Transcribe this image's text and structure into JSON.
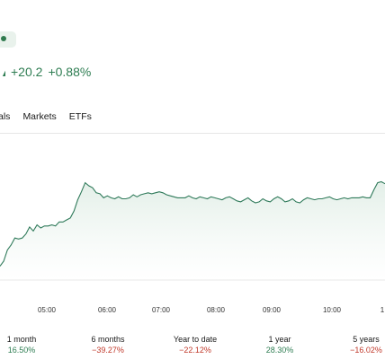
{
  "status": {
    "icon": "market-status-dot-icon"
  },
  "quote": {
    "change": "+20.2",
    "change_pct": "+0.88%",
    "color": "#2e7d52"
  },
  "tabs": [
    {
      "label": "als"
    },
    {
      "label": "Markets"
    },
    {
      "label": "ETFs"
    }
  ],
  "chart_data": {
    "type": "area",
    "title": "",
    "xlabel": "",
    "ylabel": "",
    "line_color": "#2f7a5a",
    "fill_color": "#e3efe8",
    "grid": false,
    "x_tick_labels": [
      "05:00",
      "06:00",
      "07:00",
      "08:00",
      "09:00",
      "10:00",
      "1"
    ],
    "series": [
      {
        "values": [
          12,
          17,
          28,
          33,
          40,
          39,
          40,
          44,
          51,
          47,
          53,
          50,
          52,
          52,
          53,
          52,
          56,
          56,
          58,
          60,
          67,
          78,
          86,
          95,
          92,
          90,
          85,
          84,
          80,
          82,
          80,
          79,
          81,
          79,
          79,
          80,
          83,
          81,
          83,
          84,
          85,
          84,
          85,
          86,
          85,
          83,
          82,
          81,
          80,
          80,
          80,
          82,
          80,
          79,
          81,
          80,
          79,
          81,
          80,
          79,
          78,
          80,
          81,
          79,
          77,
          76,
          78,
          80,
          77,
          75,
          76,
          79,
          77,
          76,
          79,
          81,
          79,
          76,
          77,
          79,
          76,
          75,
          78,
          80,
          79,
          78,
          79,
          79,
          80,
          81,
          79,
          78,
          79,
          80,
          79,
          80,
          80,
          80,
          81,
          80,
          80,
          88,
          95,
          96,
          94
        ]
      }
    ]
  },
  "performance": [
    {
      "label": "1 month",
      "value": "16.50%",
      "sign": "pos"
    },
    {
      "label": "6 months",
      "value": "−39.27%",
      "sign": "neg"
    },
    {
      "label": "Year to date",
      "value": "−22.12%",
      "sign": "neg"
    },
    {
      "label": "1 year",
      "value": "28.30%",
      "sign": "pos"
    },
    {
      "label": "5 years",
      "value": "−16.02%",
      "sign": "neg"
    }
  ]
}
